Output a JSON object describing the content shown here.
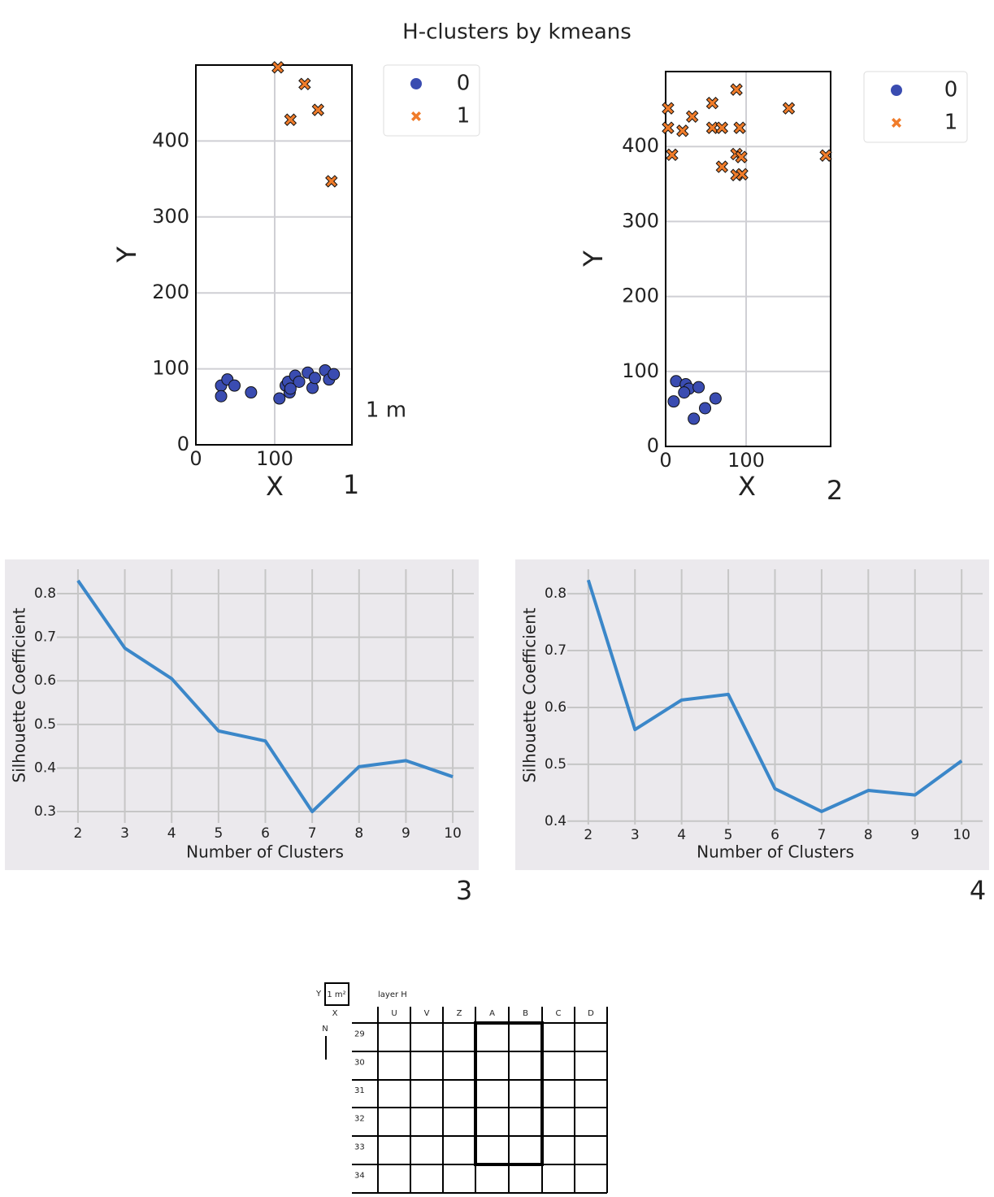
{
  "title": "H-clusters by kmeans",
  "chart_data": [
    {
      "type": "scatter",
      "panel_label": "1",
      "annotation": "1 m",
      "x_label": "X",
      "y_label": "Y",
      "xlim": [
        0,
        198
      ],
      "ylim": [
        0,
        500
      ],
      "xticks": [
        0,
        100
      ],
      "yticks": [
        0,
        100,
        200,
        300,
        400
      ],
      "grid": true,
      "legend": "outside-right",
      "series": [
        {
          "name": "0",
          "color": "#3a4cb1",
          "marker": "circle",
          "x": [
            32,
            40,
            49,
            32,
            70,
            106,
            114,
            117,
            119,
            126,
            131,
            142,
            148,
            151,
            164,
            169,
            175,
            120
          ],
          "y": [
            78,
            86,
            78,
            64,
            69,
            61,
            78,
            83,
            69,
            91,
            83,
            95,
            75,
            88,
            98,
            86,
            93,
            74
          ]
        },
        {
          "name": "1",
          "color": "#f07c2a",
          "marker": "x",
          "x": [
            104,
            138,
            120,
            155,
            172
          ],
          "y": [
            497,
            475,
            428,
            441,
            347
          ]
        }
      ]
    },
    {
      "type": "scatter",
      "panel_label": "2",
      "x_label": "X",
      "y_label": "Y",
      "xlim": [
        0,
        205
      ],
      "ylim": [
        0,
        500
      ],
      "xticks": [
        0,
        100
      ],
      "yticks": [
        0,
        100,
        200,
        300,
        400
      ],
      "grid": true,
      "legend": "outside-right",
      "series": [
        {
          "name": "0",
          "color": "#3a4cb1",
          "marker": "circle",
          "x": [
            13,
            25,
            29,
            23,
            41,
            10,
            62,
            49,
            35
          ],
          "y": [
            87,
            83,
            77,
            72,
            79,
            60,
            64,
            51,
            37
          ]
        },
        {
          "name": "1",
          "color": "#f07c2a",
          "marker": "x",
          "x": [
            3,
            3,
            8,
            21,
            33,
            58,
            88,
            58,
            70,
            92,
            70,
            88,
            94,
            88,
            95,
            153,
            199
          ],
          "y": [
            451,
            425,
            389,
            421,
            440,
            458,
            476,
            425,
            425,
            425,
            373,
            390,
            386,
            362,
            363,
            451,
            388
          ]
        }
      ]
    },
    {
      "type": "line",
      "panel_label": "3",
      "x_label": "Number of Clusters",
      "y_label": "Silhouette Coefficient",
      "xlim": [
        1.55,
        10.45
      ],
      "ylim": [
        0.274,
        0.856
      ],
      "xticks": [
        2,
        3,
        4,
        5,
        6,
        7,
        8,
        9,
        10
      ],
      "yticks": [
        0.3,
        0.4,
        0.5,
        0.6,
        0.7,
        0.8
      ],
      "grid": true,
      "x": [
        2,
        3,
        4,
        5,
        6,
        7,
        8,
        9,
        10
      ],
      "values": [
        0.83,
        0.675,
        0.605,
        0.485,
        0.462,
        0.3,
        0.403,
        0.417,
        0.38
      ],
      "color": "#3b87c9"
    },
    {
      "type": "line",
      "panel_label": "4",
      "x_label": "Number of Clusters",
      "y_label": "Silhouette Coefficient",
      "xlim": [
        1.55,
        10.45
      ],
      "ylim": [
        0.394,
        0.843
      ],
      "xticks": [
        2,
        3,
        4,
        5,
        6,
        7,
        8,
        9,
        10
      ],
      "yticks": [
        0.4,
        0.5,
        0.6,
        0.7,
        0.8
      ],
      "grid": true,
      "x": [
        2,
        3,
        4,
        5,
        6,
        7,
        8,
        9,
        10
      ],
      "values": [
        0.824,
        0.561,
        0.613,
        0.623,
        0.457,
        0.417,
        0.454,
        0.446,
        0.506
      ],
      "color": "#3b87c9"
    }
  ],
  "grid_map": {
    "y_label": "Y",
    "scale_label": "1 m²",
    "x_label": "X",
    "north": "N",
    "title": "layer H",
    "columns": [
      "U",
      "V",
      "Z",
      "A",
      "B",
      "C",
      "D"
    ],
    "rows": [
      29,
      30,
      31,
      32,
      33,
      34
    ]
  }
}
